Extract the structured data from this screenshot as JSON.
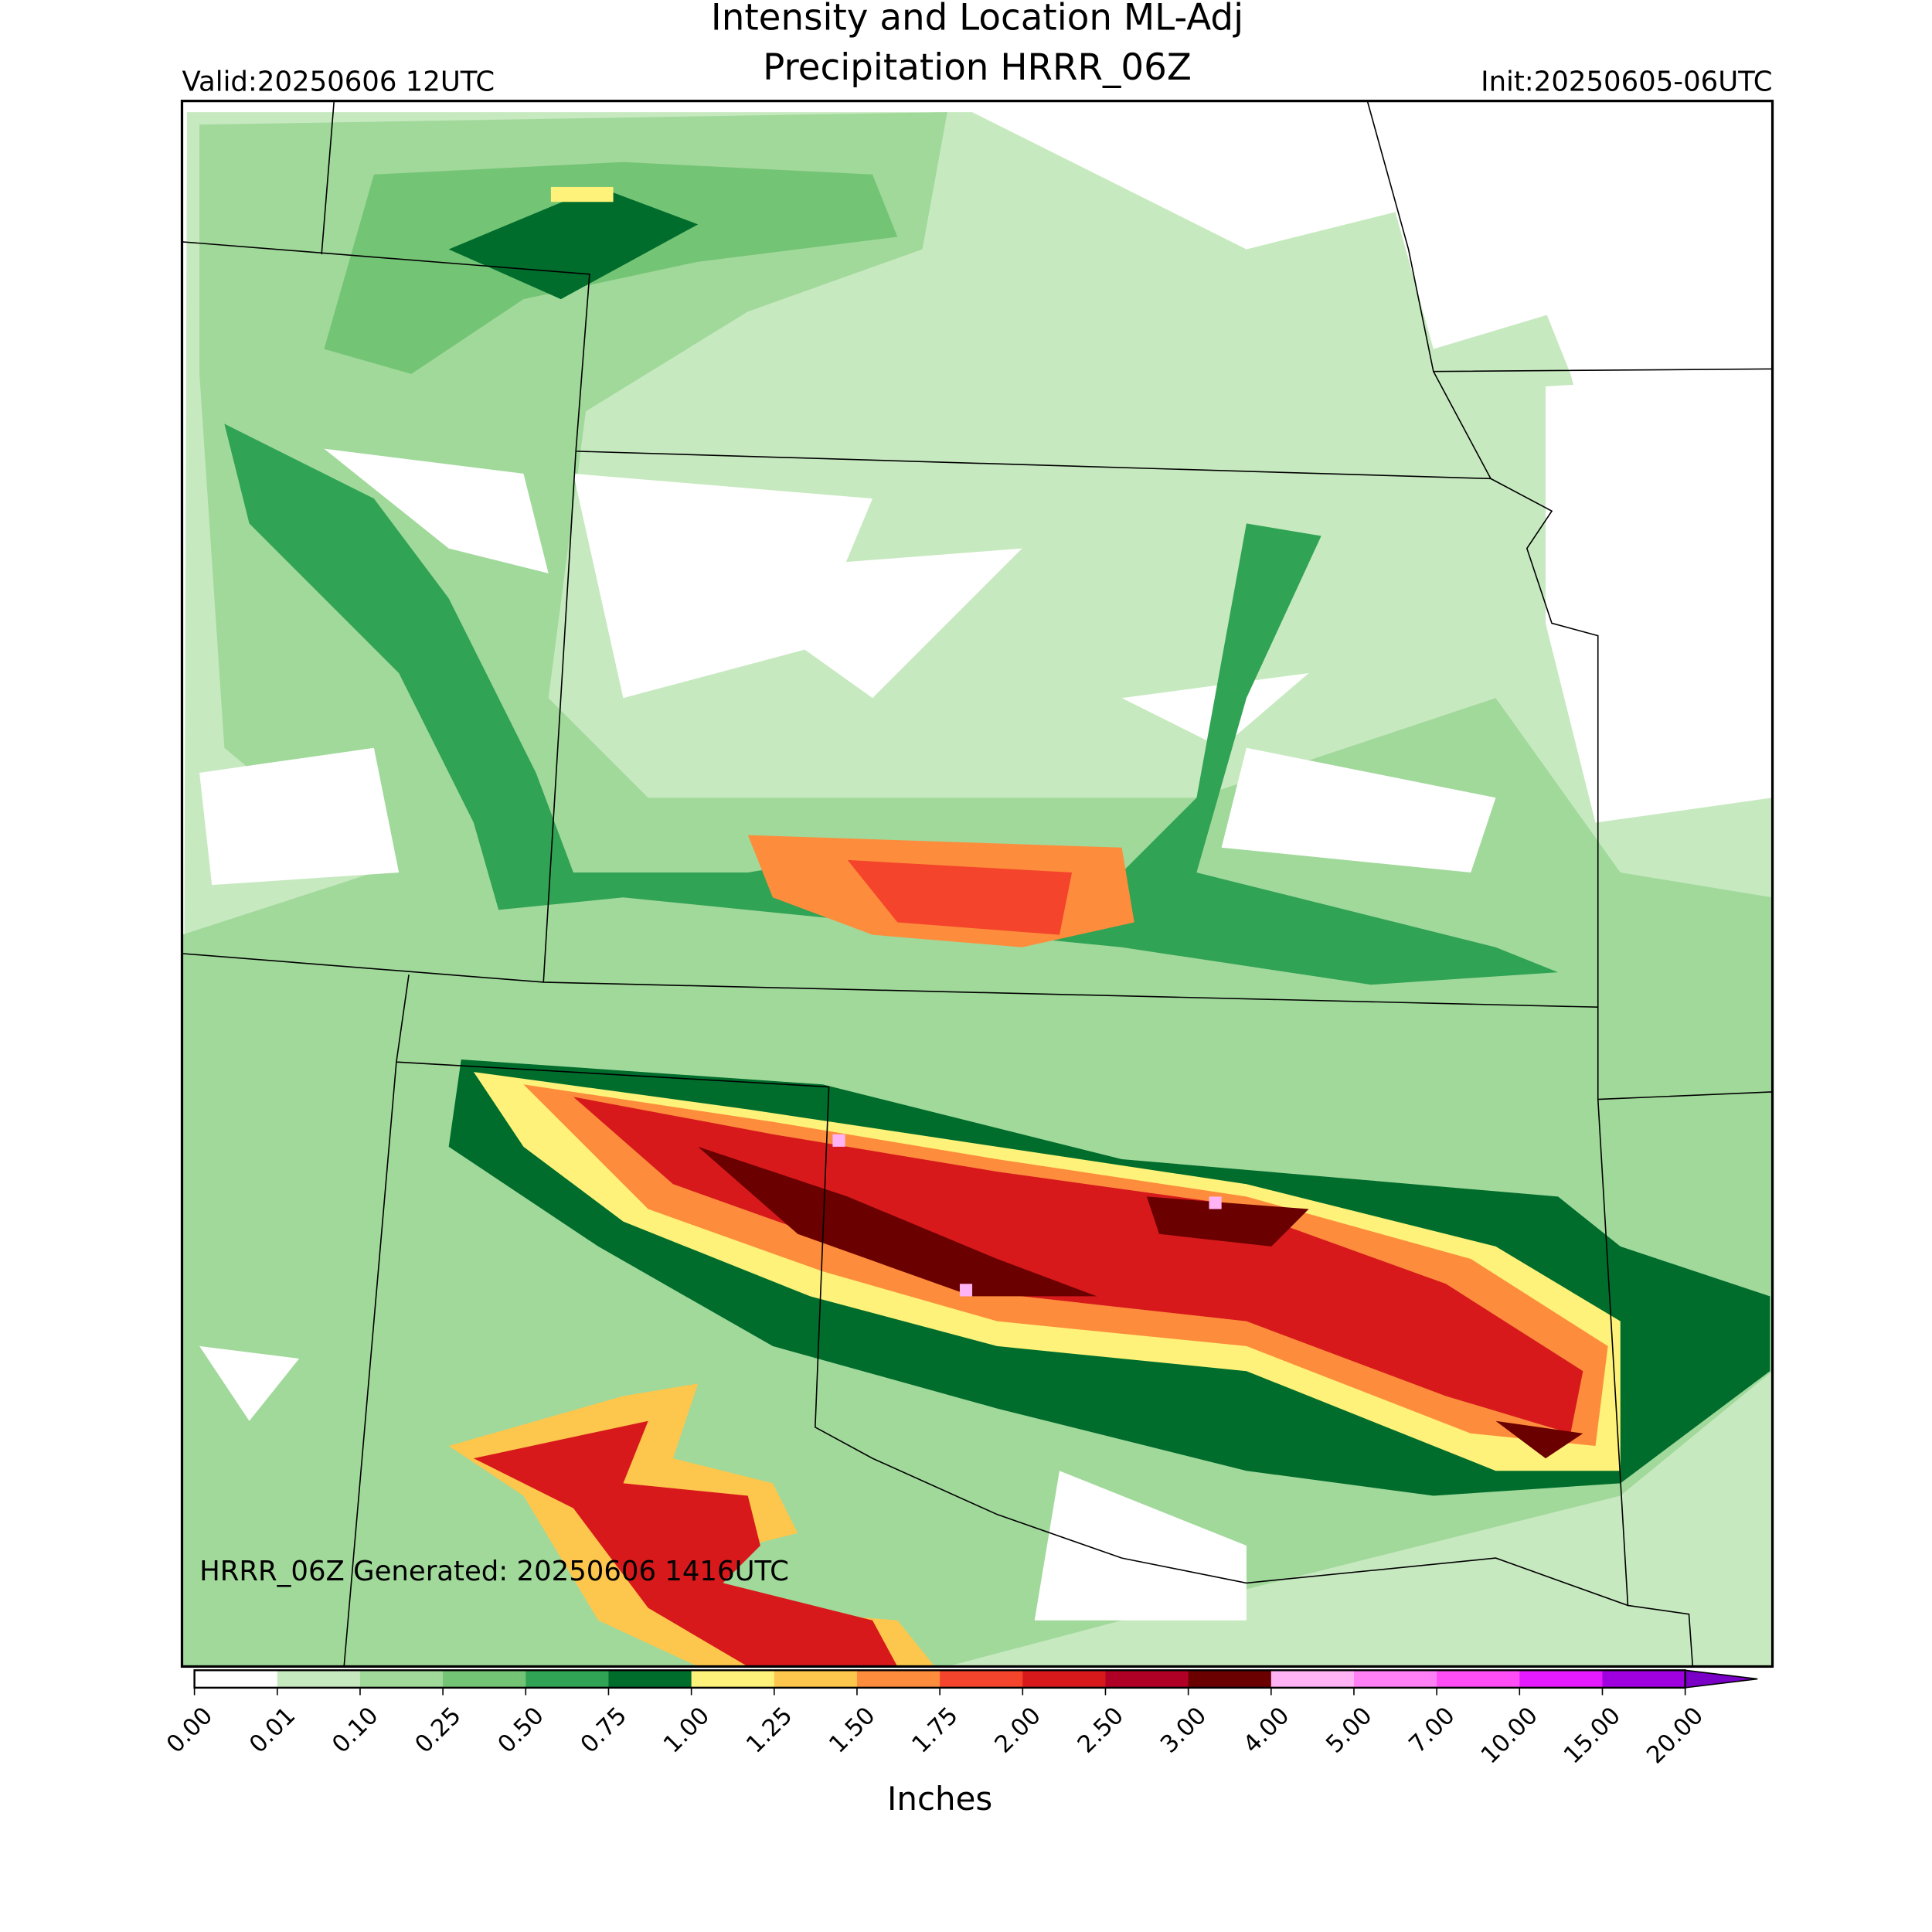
{
  "header": {
    "title": [
      "Intensity and Location ML-Adj",
      "Precipitation HRRR_06Z"
    ],
    "valid": "Valid:20250606 12UTC",
    "init": "Init:20250605-06UTC"
  },
  "map": {
    "footnote": "HRRR_06Z Generated: 20250606 1416UTC"
  },
  "colorbar": {
    "label": "Inches",
    "ticks": [
      "0.00",
      "0.01",
      "0.10",
      "0.25",
      "0.50",
      "0.75",
      "1.00",
      "1.25",
      "1.50",
      "1.75",
      "2.00",
      "2.50",
      "3.00",
      "4.00",
      "5.00",
      "7.00",
      "10.00",
      "15.00",
      "20.00"
    ],
    "colors": [
      "#ffffff",
      "#c7e9c0",
      "#a1d99b",
      "#74c476",
      "#31a354",
      "#006d2c",
      "#fff27a",
      "#fdc64c",
      "#fd8d3c",
      "#f4442c",
      "#d7191c",
      "#b10026",
      "#6b0000",
      "#ffb3f5",
      "#ff80f5",
      "#ff4df5",
      "#e61aff",
      "#a000e0"
    ],
    "extend_color": "#7a00c8"
  }
}
